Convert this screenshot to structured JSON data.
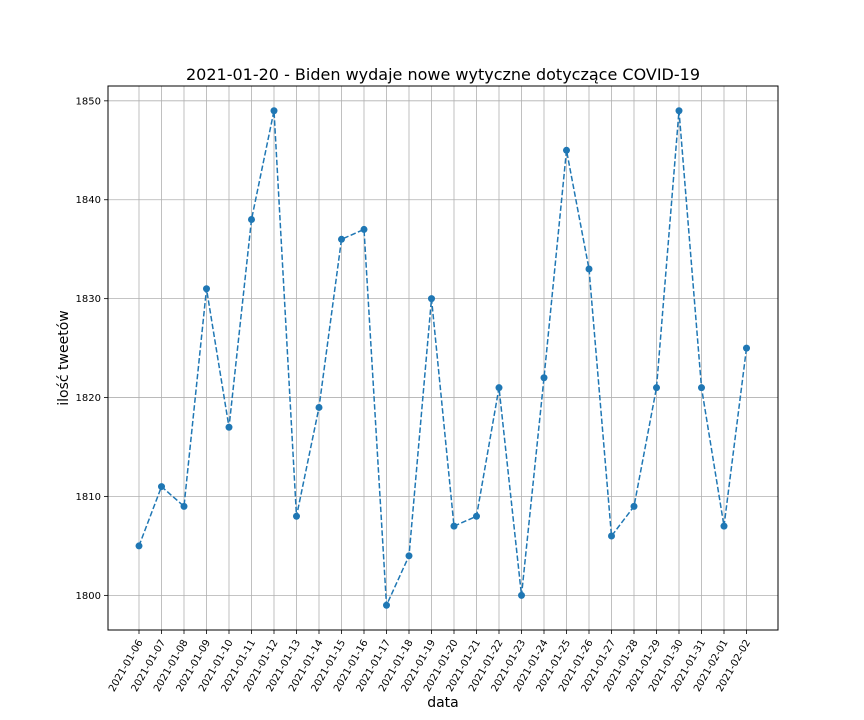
{
  "chart_data": {
    "type": "line",
    "title": "2021-01-20 - Biden wydaje nowe wytyczne dotyczące COVID-19",
    "xlabel": "data",
    "ylabel": "ilość tweetów",
    "categories": [
      "2021-01-06",
      "2021-01-07",
      "2021-01-08",
      "2021-01-09",
      "2021-01-10",
      "2021-01-11",
      "2021-01-12",
      "2021-01-13",
      "2021-01-14",
      "2021-01-15",
      "2021-01-16",
      "2021-01-17",
      "2021-01-18",
      "2021-01-19",
      "2021-01-20",
      "2021-01-21",
      "2021-01-22",
      "2021-01-23",
      "2021-01-24",
      "2021-01-25",
      "2021-01-26",
      "2021-01-27",
      "2021-01-28",
      "2021-01-29",
      "2021-01-30",
      "2021-01-31",
      "2021-02-01",
      "2021-02-02"
    ],
    "series": [
      {
        "values": [
          1805,
          1811,
          1809,
          1831,
          1817,
          1838,
          1849,
          1808,
          1819,
          1836,
          1837,
          1799,
          1804,
          1830,
          1807,
          1808,
          1821,
          1800,
          1822,
          1845,
          1833,
          1806,
          1809,
          1821,
          1849,
          1821,
          1807,
          1825
        ],
        "color": "#1f77b4",
        "line_style": "dashed",
        "marker": "circle"
      }
    ],
    "ylim": [
      1796.5,
      1851.5
    ],
    "yticks": [
      1800,
      1810,
      1820,
      1830,
      1840,
      1850
    ],
    "grid": true
  }
}
